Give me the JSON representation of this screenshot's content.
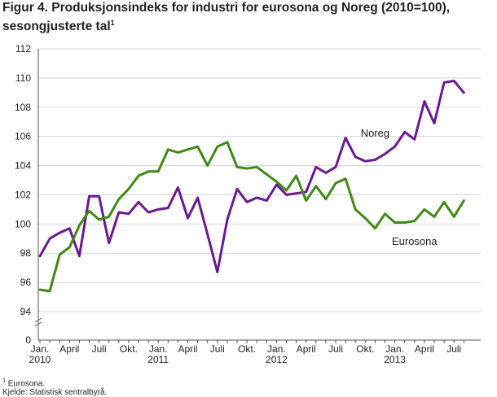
{
  "title": {
    "line1": "Figur 4. Produksjonsindeks for industri for eurosona og Noreg (2010=100),",
    "line2": "sesongjusterte tal",
    "footnote_marker": "1"
  },
  "footnotes": {
    "marker": "1",
    "note": "Eurosona.",
    "source": "Kjelde: Statistisk sentralbyrå."
  },
  "colors": {
    "noreg": "#6b1a8f",
    "eurosona": "#3f8a14",
    "grid": "#d6d6d6",
    "axis": "#555555"
  },
  "chart_data": {
    "type": "line",
    "title": "Produksjonsindeks for industri for eurosona og Noreg (2010=100), sesongjusterte tal",
    "xlabel": "",
    "ylabel": "",
    "ylim": [
      94,
      112
    ],
    "y_ticks": [
      0,
      94,
      96,
      98,
      100,
      102,
      104,
      106,
      108,
      110,
      112
    ],
    "axis_break": "between 0 and 94",
    "grid": true,
    "x_tick_labels": [
      {
        "label": "Jan.",
        "year": "2010",
        "index": 0
      },
      {
        "label": "April",
        "year": "",
        "index": 3
      },
      {
        "label": "Juli",
        "year": "",
        "index": 6
      },
      {
        "label": "Okt.",
        "year": "",
        "index": 9
      },
      {
        "label": "Jan.",
        "year": "2011",
        "index": 12
      },
      {
        "label": "April",
        "year": "",
        "index": 15
      },
      {
        "label": "Juli",
        "year": "",
        "index": 18
      },
      {
        "label": "Okt.",
        "year": "",
        "index": 21
      },
      {
        "label": "Jan.",
        "year": "2012",
        "index": 24
      },
      {
        "label": "April",
        "year": "",
        "index": 27
      },
      {
        "label": "Juli",
        "year": "",
        "index": 30
      },
      {
        "label": "Okt.",
        "year": "",
        "index": 33
      },
      {
        "label": "Jan.",
        "year": "2013",
        "index": 36
      },
      {
        "label": "April",
        "year": "",
        "index": 39
      },
      {
        "label": "Juli",
        "year": "",
        "index": 42
      }
    ],
    "months": [
      "2010-01",
      "2010-02",
      "2010-03",
      "2010-04",
      "2010-05",
      "2010-06",
      "2010-07",
      "2010-08",
      "2010-09",
      "2010-10",
      "2010-11",
      "2010-12",
      "2011-01",
      "2011-02",
      "2011-03",
      "2011-04",
      "2011-05",
      "2011-06",
      "2011-07",
      "2011-08",
      "2011-09",
      "2011-10",
      "2011-11",
      "2011-12",
      "2012-01",
      "2012-02",
      "2012-03",
      "2012-04",
      "2012-05",
      "2012-06",
      "2012-07",
      "2012-08",
      "2012-09",
      "2012-10",
      "2012-11",
      "2012-12",
      "2013-01",
      "2013-02",
      "2013-03",
      "2013-04",
      "2013-05",
      "2013-06",
      "2013-07",
      "2013-08"
    ],
    "series": [
      {
        "name": "Noreg",
        "color_key": "noreg",
        "label_at_index": 34,
        "label_value": 106.2,
        "values": [
          97.8,
          99.0,
          99.4,
          99.7,
          97.8,
          101.9,
          101.9,
          98.7,
          100.8,
          100.7,
          101.5,
          100.8,
          101.0,
          101.1,
          102.5,
          100.4,
          101.8,
          99.3,
          96.7,
          100.3,
          102.4,
          101.5,
          101.8,
          101.6,
          102.7,
          102.0,
          102.1,
          102.2,
          103.9,
          103.5,
          103.9,
          105.9,
          104.6,
          104.3,
          104.4,
          104.8,
          105.3,
          106.3,
          105.8,
          108.4,
          106.9,
          109.7,
          109.8,
          109.0
        ]
      },
      {
        "name": "Eurosona",
        "color_key": "eurosona",
        "label_at_index": 38,
        "label_value": 98.8,
        "values": [
          95.5,
          95.4,
          97.9,
          98.4,
          99.9,
          100.9,
          100.3,
          100.5,
          101.7,
          102.4,
          103.3,
          103.6,
          103.6,
          105.1,
          104.9,
          105.1,
          105.3,
          104.0,
          105.3,
          105.6,
          103.9,
          103.8,
          103.9,
          103.4,
          102.9,
          102.3,
          103.3,
          101.6,
          102.6,
          101.7,
          102.8,
          103.1,
          101.0,
          100.4,
          99.7,
          100.7,
          100.1,
          100.1,
          100.2,
          101.0,
          100.5,
          101.5,
          100.5,
          101.6
        ]
      }
    ]
  }
}
